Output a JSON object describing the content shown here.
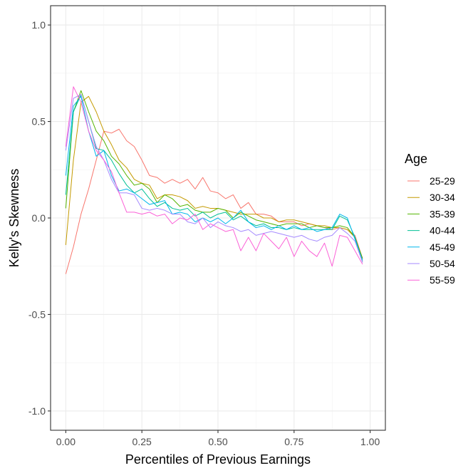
{
  "chart_data": {
    "type": "line",
    "xlabel": "Percentiles of Previous Earnings",
    "ylabel": "Kelly's Skewness",
    "xlim": [
      -0.05,
      1.05
    ],
    "ylim": [
      -1.1,
      1.1
    ],
    "x_ticks": [
      0.0,
      0.25,
      0.5,
      0.75,
      1.0
    ],
    "x_tick_labels": [
      "0.00",
      "0.25",
      "0.50",
      "0.75",
      "1.00"
    ],
    "y_ticks": [
      -1.0,
      -0.5,
      0.0,
      0.5,
      1.0
    ],
    "y_tick_labels": [
      "-1.0",
      "-0.5",
      "0.0",
      "0.5",
      "1.0"
    ],
    "grid": true,
    "legend": {
      "title": "Age",
      "position": "right"
    },
    "x": [
      0.0,
      0.025,
      0.05,
      0.075,
      0.1,
      0.125,
      0.15,
      0.175,
      0.2,
      0.225,
      0.25,
      0.275,
      0.3,
      0.325,
      0.35,
      0.375,
      0.4,
      0.425,
      0.45,
      0.475,
      0.5,
      0.525,
      0.55,
      0.575,
      0.6,
      0.625,
      0.65,
      0.675,
      0.7,
      0.725,
      0.75,
      0.775,
      0.8,
      0.825,
      0.85,
      0.875,
      0.9,
      0.925,
      0.95,
      0.975
    ],
    "series": [
      {
        "name": "25-29",
        "color": "#F8766D",
        "values": [
          -0.29,
          -0.15,
          0.02,
          0.15,
          0.3,
          0.45,
          0.44,
          0.46,
          0.4,
          0.37,
          0.3,
          0.22,
          0.21,
          0.18,
          0.2,
          0.18,
          0.2,
          0.15,
          0.21,
          0.14,
          0.13,
          0.1,
          0.12,
          0.05,
          0.08,
          0.02,
          0.02,
          0.01,
          -0.02,
          -0.02,
          -0.02,
          -0.04,
          -0.03,
          -0.04,
          -0.05,
          -0.06,
          -0.05,
          -0.06,
          -0.09,
          -0.21
        ]
      },
      {
        "name": "30-34",
        "color": "#C49A00",
        "values": [
          -0.14,
          0.3,
          0.6,
          0.63,
          0.55,
          0.45,
          0.38,
          0.3,
          0.26,
          0.2,
          0.18,
          0.17,
          0.1,
          0.12,
          0.12,
          0.11,
          0.09,
          0.05,
          0.06,
          0.05,
          0.05,
          0.04,
          0.03,
          0.02,
          0.02,
          0.02,
          0.0,
          0.0,
          -0.02,
          -0.01,
          -0.01,
          -0.02,
          -0.03,
          -0.04,
          -0.04,
          -0.05,
          -0.05,
          -0.06,
          -0.1,
          -0.22
        ]
      },
      {
        "name": "35-39",
        "color": "#53B400",
        "values": [
          0.05,
          0.55,
          0.66,
          0.55,
          0.45,
          0.4,
          0.32,
          0.28,
          0.22,
          0.17,
          0.18,
          0.15,
          0.08,
          0.12,
          0.1,
          0.06,
          0.07,
          0.04,
          0.03,
          0.03,
          0.05,
          0.04,
          0.0,
          0.03,
          0.01,
          -0.01,
          -0.02,
          -0.03,
          -0.04,
          -0.03,
          -0.03,
          -0.03,
          -0.05,
          -0.04,
          -0.05,
          -0.05,
          -0.04,
          -0.05,
          -0.1,
          -0.21
        ]
      },
      {
        "name": "40-44",
        "color": "#00C094",
        "values": [
          0.12,
          0.55,
          0.64,
          0.5,
          0.36,
          0.35,
          0.3,
          0.23,
          0.17,
          0.13,
          0.15,
          0.1,
          0.06,
          0.08,
          0.05,
          0.04,
          0.05,
          0.01,
          0.03,
          0.0,
          0.02,
          0.03,
          -0.01,
          0.01,
          -0.02,
          -0.04,
          -0.03,
          -0.05,
          -0.05,
          -0.06,
          -0.05,
          -0.06,
          -0.06,
          -0.06,
          -0.06,
          -0.06,
          0.01,
          -0.01,
          -0.1,
          -0.23
        ]
      },
      {
        "name": "45-49",
        "color": "#00B6EB",
        "values": [
          0.22,
          0.58,
          0.63,
          0.45,
          0.32,
          0.35,
          0.22,
          0.14,
          0.15,
          0.13,
          0.1,
          0.07,
          0.08,
          0.09,
          0.02,
          0.03,
          0.02,
          -0.02,
          0.0,
          -0.02,
          0.0,
          -0.03,
          0.0,
          0.04,
          -0.02,
          -0.05,
          -0.04,
          -0.06,
          -0.04,
          -0.06,
          -0.04,
          -0.06,
          -0.05,
          -0.07,
          -0.06,
          -0.05,
          0.02,
          0.0,
          -0.11,
          -0.22
        ]
      },
      {
        "name": "50-54",
        "color": "#A58AFF",
        "values": [
          0.35,
          0.62,
          0.64,
          0.5,
          0.37,
          0.3,
          0.2,
          0.13,
          0.13,
          0.12,
          0.05,
          0.04,
          0.05,
          0.04,
          0.02,
          0.02,
          -0.02,
          -0.03,
          0.0,
          -0.05,
          -0.02,
          -0.04,
          -0.05,
          -0.07,
          -0.06,
          -0.09,
          -0.08,
          -0.07,
          -0.08,
          -0.09,
          -0.1,
          -0.09,
          -0.11,
          -0.12,
          -0.1,
          -0.09,
          -0.05,
          -0.08,
          -0.12,
          -0.23
        ]
      },
      {
        "name": "55-59",
        "color": "#FB61D7",
        "values": [
          0.37,
          0.68,
          0.6,
          0.45,
          0.35,
          0.3,
          0.24,
          0.13,
          0.03,
          0.03,
          0.02,
          0.03,
          0.01,
          0.02,
          -0.03,
          0.0,
          -0.01,
          0.02,
          -0.06,
          -0.03,
          -0.05,
          -0.07,
          -0.06,
          -0.17,
          -0.1,
          -0.17,
          -0.08,
          -0.12,
          -0.16,
          -0.1,
          -0.2,
          -0.12,
          -0.17,
          -0.2,
          -0.13,
          -0.25,
          -0.09,
          -0.1,
          -0.17,
          -0.24
        ]
      }
    ]
  }
}
